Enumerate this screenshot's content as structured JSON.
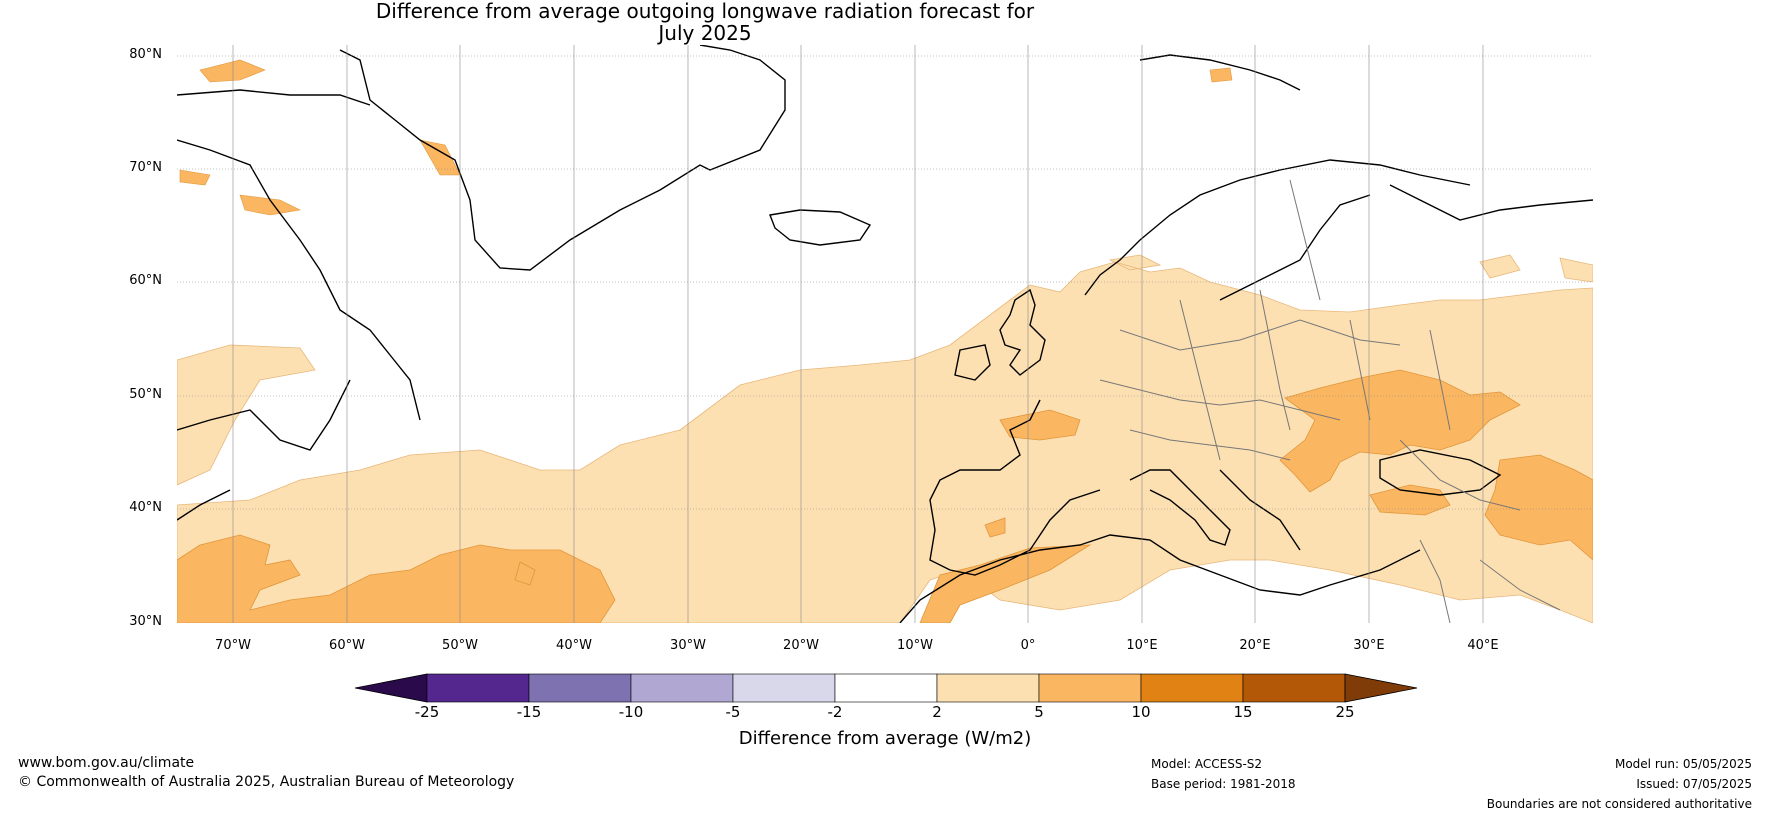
{
  "title_line1": "Difference from average outgoing longwave radiation forecast for",
  "title_line2": "July 2025",
  "lat_labels": [
    "80°N",
    "70°N",
    "60°N",
    "50°N",
    "40°N",
    "30°N"
  ],
  "lon_labels": [
    "70°W",
    "60°W",
    "50°W",
    "40°W",
    "30°W",
    "20°W",
    "10°W",
    "0°",
    "10°E",
    "20°E",
    "30°E",
    "40°E"
  ],
  "colorbar": {
    "ticks": [
      "-25",
      "-15",
      "-10",
      "-5",
      "-2",
      "2",
      "5",
      "10",
      "15",
      "25"
    ],
    "colors": [
      "#2a0a4a",
      "#54278f",
      "#7f72b0",
      "#b0a8d3",
      "#d9d8ea",
      "#ffffff",
      "#fde0b2",
      "#fbb662",
      "#e08214",
      "#b35806",
      "#7f3b08"
    ],
    "label": "Difference from average (W/m2)"
  },
  "footer": {
    "website": "www.bom.gov.au/climate",
    "copyright": "© Commonwealth of Australia 2025, Australian Bureau of Meteorology",
    "model": "Model: ACCESS-S2",
    "base_period": "Base period: 1981-2018",
    "model_run": "Model run: 05/05/2025",
    "issued": "Issued: 07/05/2025",
    "disclaimer": "Boundaries are not considered authoritative"
  }
}
